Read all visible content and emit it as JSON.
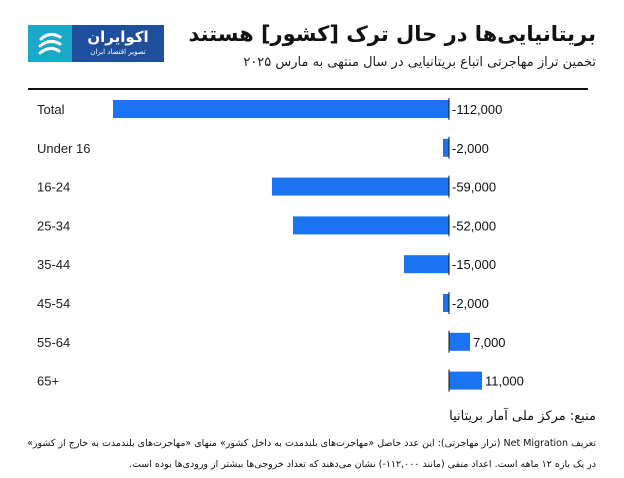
{
  "header": {
    "title": "بریتانیایی‌ها در حال ترک [کشور] هستند",
    "subtitle": "تخمین تراز مهاجرتی اتباع بریتانیایی در سال منتهی به مارس ۲۰۲۵"
  },
  "logo": {
    "name": "اکوایران",
    "tagline": "تصویر اقتصاد ایران"
  },
  "colors": {
    "bar": "#1a73f0",
    "logo_bg": "#1d4f9c",
    "logo_mark": "#1aa9c9"
  },
  "chart_data": {
    "type": "bar",
    "orientation": "horizontal",
    "categories": [
      "Total",
      "Under 16",
      "16-24",
      "25-34",
      "35-44",
      "45-54",
      "55-64",
      "65+"
    ],
    "values": [
      -112000,
      -2000,
      -59000,
      -52000,
      -15000,
      -2000,
      7000,
      11000
    ],
    "data_labels": [
      "-112,000",
      "-2,000",
      "-59,000",
      "-52,000",
      "-15,000",
      "-2,000",
      "7,000",
      "11,000"
    ],
    "grid": false
  },
  "footer": {
    "source": "منبع: مرکز ملی آمار بریتانیا",
    "note_line1": "تعریف Net Migration (تراز مهاجرتی): این عدد حاصل «مهاجرت‌های بلندمدت به داخل کشور» منهای «مهاجرت‌های بلندمدت به خارج از کشور»",
    "note_line2": "در یک بازه ۱۲ ماهه است. اعداد منفی (مانند ۱۱۲,۰۰۰-) نشان می‌دهند که تعداد خروجی‌ها بیشتر از ورودی‌ها بوده است."
  }
}
